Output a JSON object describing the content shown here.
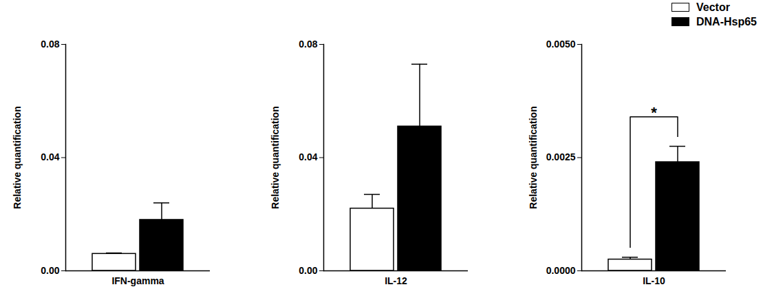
{
  "chart_data": [
    {
      "type": "bar",
      "categories": [
        "IFN-gamma"
      ],
      "series": [
        {
          "name": "Vector",
          "color": "#ffffff",
          "values": [
            0.006
          ],
          "errors": [
            0.0003
          ]
        },
        {
          "name": "DNA-Hsp65",
          "color": "#000000",
          "values": [
            0.018
          ],
          "errors": [
            0.006
          ]
        }
      ],
      "ylabel": "Relative quantification",
      "ylim": [
        0,
        0.08
      ],
      "yticks": [
        {
          "value": 0,
          "label": "0.00"
        },
        {
          "value": 0.04,
          "label": "0.04"
        },
        {
          "value": 0.08,
          "label": "0.08"
        }
      ],
      "grid": false
    },
    {
      "type": "bar",
      "categories": [
        "IL-12"
      ],
      "series": [
        {
          "name": "Vector",
          "color": "#ffffff",
          "values": [
            0.022
          ],
          "errors": [
            0.005
          ]
        },
        {
          "name": "DNA-Hsp65",
          "color": "#000000",
          "values": [
            0.051
          ],
          "errors": [
            0.022
          ]
        }
      ],
      "ylabel": "Relative quantification",
      "ylim": [
        0,
        0.08
      ],
      "yticks": [
        {
          "value": 0,
          "label": "0.00"
        },
        {
          "value": 0.04,
          "label": "0.04"
        },
        {
          "value": 0.08,
          "label": "0.08"
        }
      ],
      "grid": false
    },
    {
      "type": "bar",
      "categories": [
        "IL-10"
      ],
      "series": [
        {
          "name": "Vector",
          "color": "#ffffff",
          "values": [
            0.00025
          ],
          "errors": [
            5e-05
          ]
        },
        {
          "name": "DNA-Hsp65",
          "color": "#000000",
          "values": [
            0.0024
          ],
          "errors": [
            0.00035
          ]
        }
      ],
      "ylabel": "Relative quantification",
      "ylim": [
        0,
        0.005
      ],
      "yticks": [
        {
          "value": 0,
          "label": "0.0000"
        },
        {
          "value": 0.0025,
          "label": "0.0025"
        },
        {
          "value": 0.005,
          "label": "0.0050"
        }
      ],
      "grid": false,
      "legend": "upper right",
      "annotations": [
        {
          "text": "*",
          "category": "IL-10",
          "between": [
            "Vector",
            "DNA-Hsp65"
          ]
        }
      ]
    }
  ]
}
